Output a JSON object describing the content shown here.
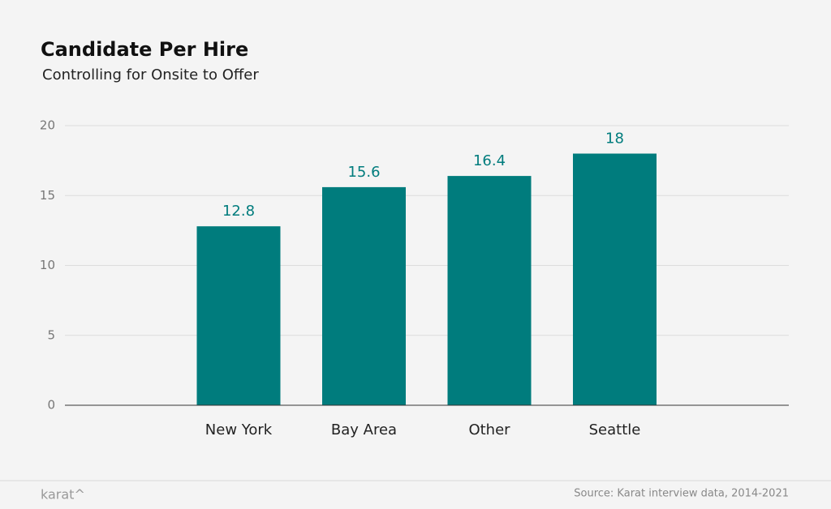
{
  "chart_data": {
    "type": "bar",
    "title": "Candidate Per Hire",
    "subtitle": "Controlling for Onsite to Offer",
    "categories": [
      "New York",
      "Bay Area",
      "Other",
      "Seattle"
    ],
    "values": [
      12.8,
      15.6,
      16.4,
      18
    ],
    "color": "#007c7d",
    "ylim": [
      0,
      20
    ],
    "yticks": [
      0,
      5,
      10,
      15,
      20
    ],
    "grid": true
  },
  "footer": {
    "logo": "karat^",
    "source": "Source: Karat interview data, 2014-2021"
  }
}
